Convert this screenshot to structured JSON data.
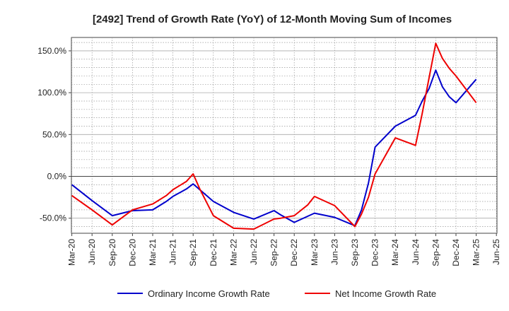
{
  "chart_data": {
    "type": "line",
    "title": "[2492]  Trend of Growth Rate (YoY) of 12-Month Moving Sum of Incomes",
    "xlabel": "",
    "ylabel": "",
    "x_tick_labels": [
      "Mar-20",
      "Jun-20",
      "Sep-20",
      "Dec-20",
      "Mar-21",
      "Jun-21",
      "Sep-21",
      "Dec-21",
      "Mar-22",
      "Jun-22",
      "Sep-22",
      "Dec-22",
      "Mar-23",
      "Jun-23",
      "Sep-23",
      "Dec-23",
      "Mar-24",
      "Jun-24",
      "Sep-24",
      "Dec-24",
      "Mar-25",
      "Jun-25"
    ],
    "y_ticks": [
      -50,
      0,
      50,
      100,
      150
    ],
    "y_tick_labels": [
      "-50.0%",
      "0.0%",
      "50.0%",
      "100.0%",
      "150.0%"
    ],
    "ylim": [
      -68,
      166
    ],
    "grid": true,
    "legend_position": "bottom",
    "series": [
      {
        "name": "Ordinary Income Growth Rate",
        "color": "#0000cc",
        "points": [
          [
            0,
            -10
          ],
          [
            1,
            -29
          ],
          [
            2,
            -47
          ],
          [
            3,
            -41
          ],
          [
            4,
            -40
          ],
          [
            4.67,
            -30
          ],
          [
            5,
            -24
          ],
          [
            5.67,
            -15
          ],
          [
            6,
            -9
          ],
          [
            6.33,
            -16
          ],
          [
            7,
            -30
          ],
          [
            8,
            -43
          ],
          [
            9,
            -51
          ],
          [
            10,
            -41
          ],
          [
            10.33,
            -46
          ],
          [
            11,
            -55
          ],
          [
            12,
            -44
          ],
          [
            13,
            -49
          ],
          [
            14,
            -59
          ],
          [
            14.33,
            -40
          ],
          [
            14.67,
            -8
          ],
          [
            15,
            35
          ],
          [
            16,
            60
          ],
          [
            17,
            73
          ],
          [
            17.33,
            90
          ],
          [
            17.67,
            105
          ],
          [
            18,
            127
          ],
          [
            18.33,
            107
          ],
          [
            18.67,
            95
          ],
          [
            19,
            88
          ],
          [
            20,
            116
          ]
        ]
      },
      {
        "name": "Net Income Growth Rate",
        "color": "#ee0000",
        "points": [
          [
            0,
            -23
          ],
          [
            1,
            -40
          ],
          [
            2,
            -58
          ],
          [
            3,
            -40
          ],
          [
            4,
            -33
          ],
          [
            4.67,
            -23
          ],
          [
            5,
            -16
          ],
          [
            5.67,
            -6
          ],
          [
            6,
            3
          ],
          [
            6.33,
            -15
          ],
          [
            7,
            -47
          ],
          [
            8,
            -62
          ],
          [
            9,
            -63
          ],
          [
            10,
            -51
          ],
          [
            10.33,
            -50
          ],
          [
            11,
            -47
          ],
          [
            11.67,
            -34
          ],
          [
            12,
            -24
          ],
          [
            13,
            -35
          ],
          [
            14,
            -60
          ],
          [
            14.33,
            -45
          ],
          [
            14.67,
            -25
          ],
          [
            15,
            3
          ],
          [
            16,
            46
          ],
          [
            17,
            37
          ],
          [
            17.33,
            75
          ],
          [
            17.67,
            118
          ],
          [
            18,
            159
          ],
          [
            18.33,
            141
          ],
          [
            18.67,
            129
          ],
          [
            19,
            120
          ],
          [
            20,
            88
          ]
        ]
      }
    ]
  }
}
